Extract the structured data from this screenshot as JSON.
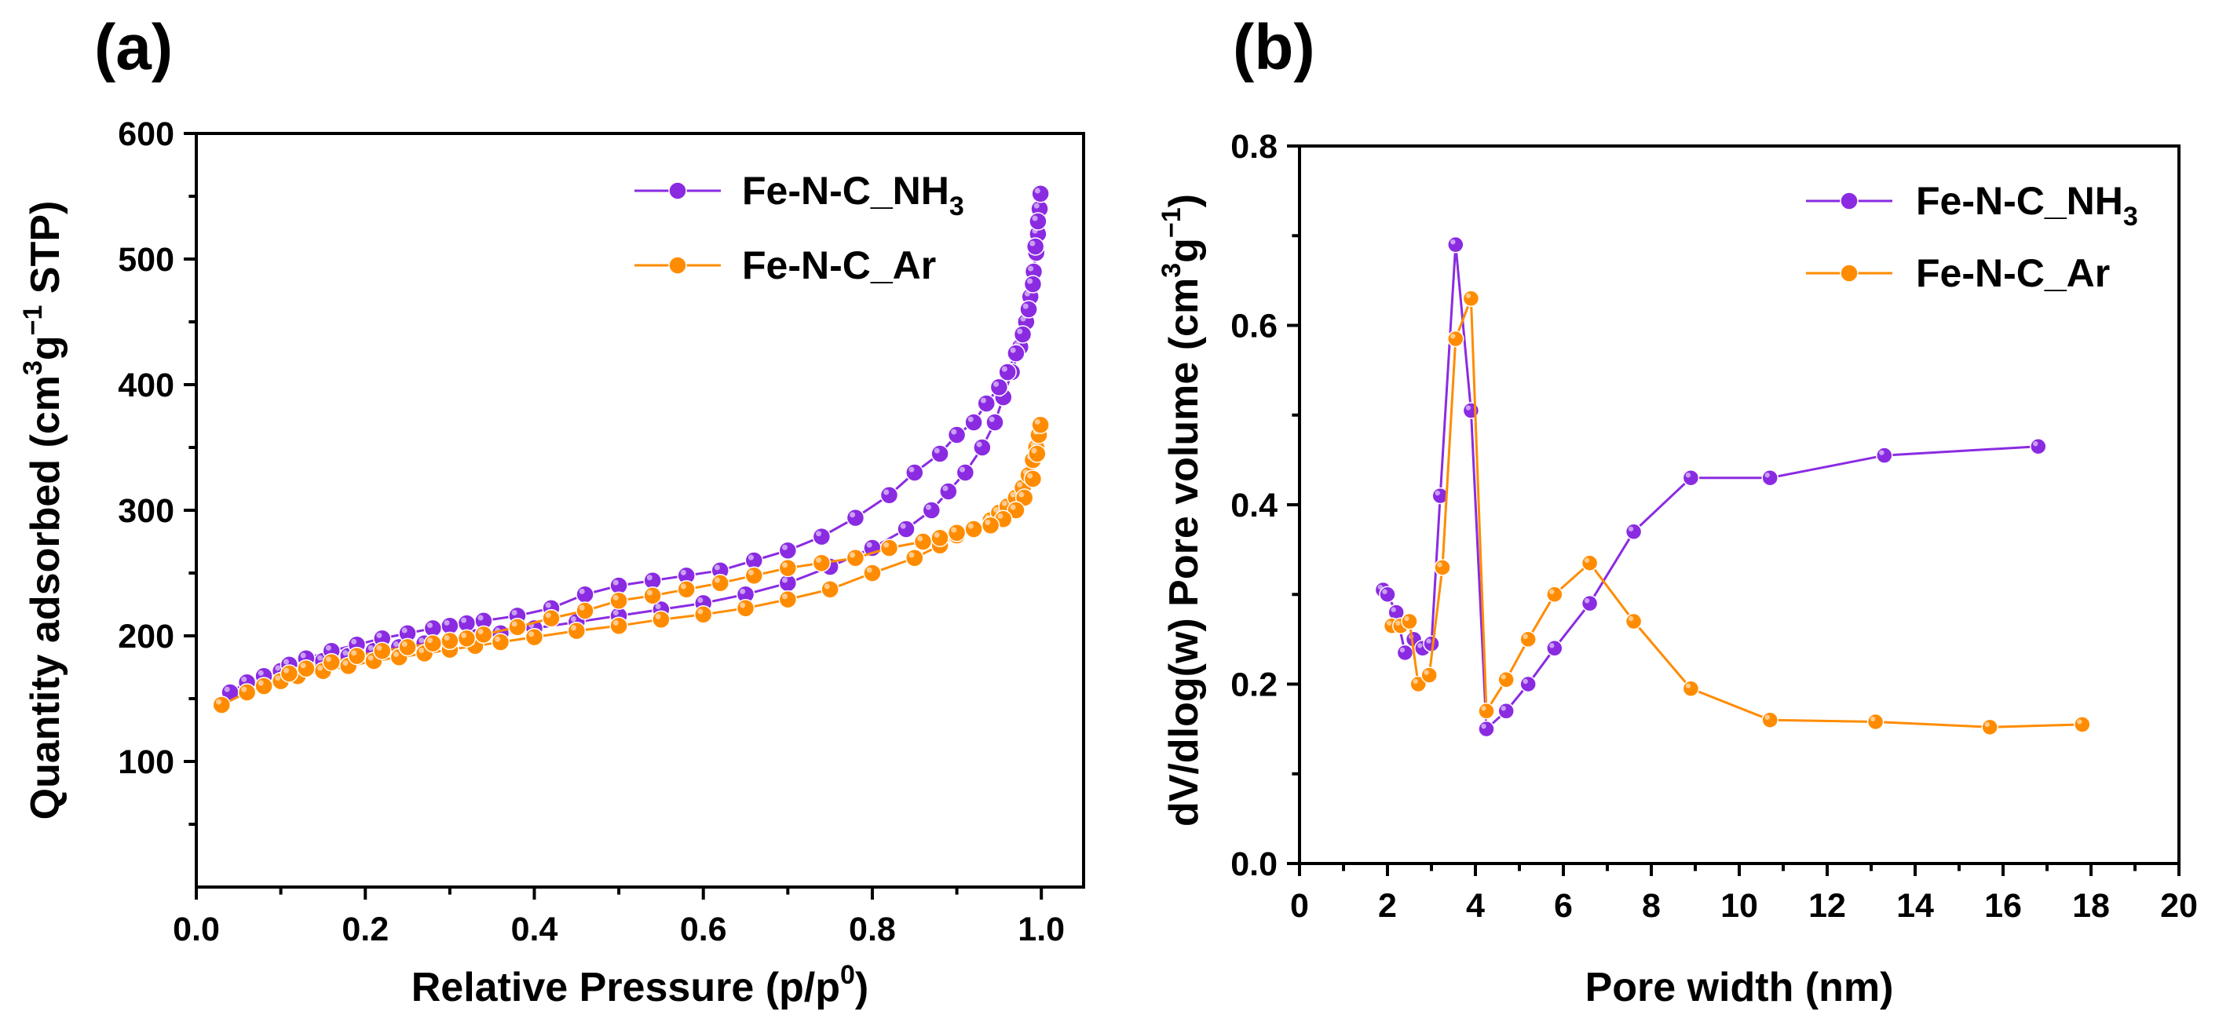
{
  "colors": {
    "nh3": "#8a2be2",
    "ar": "#ff8c00"
  },
  "chart_data": [
    {
      "id": "a",
      "panel_label": "(a)",
      "type": "line",
      "title": "",
      "xlabel": "Relative Pressure (p/p",
      "xlabel_sup": "0",
      "xlabel_end": ")",
      "ylabel_parts": [
        "Quantity adsorbed (cm",
        "3",
        "g",
        "−1",
        " STP)"
      ],
      "xlim": [
        0.0,
        1.05
      ],
      "ylim": [
        0,
        600
      ],
      "xticks": [
        0.0,
        0.2,
        0.4,
        0.6,
        0.8,
        1.0
      ],
      "xtick_labels": [
        "0.0",
        "0.2",
        "0.4",
        "0.6",
        "0.8",
        "1.0"
      ],
      "yticks": [
        100,
        200,
        300,
        400,
        500,
        600
      ],
      "ytick_labels": [
        "100",
        "200",
        "300",
        "400",
        "500",
        "600"
      ],
      "grid": false,
      "legend_position": "top-right",
      "series": [
        {
          "name": "Fe-N-C_NH",
          "name_sub": "3",
          "color_key": "nh3",
          "x": [
            0.04,
            0.06,
            0.08,
            0.1,
            0.12,
            0.15,
            0.18,
            0.21,
            0.24,
            0.27,
            0.3,
            0.33,
            0.36,
            0.4,
            0.45,
            0.5,
            0.55,
            0.6,
            0.65,
            0.7,
            0.75,
            0.8,
            0.84,
            0.87,
            0.89,
            0.91,
            0.93,
            0.945,
            0.955,
            0.965,
            0.975,
            0.982,
            0.987,
            0.991,
            0.994,
            0.996,
            0.998,
            0.999,
            0.996,
            0.993,
            0.99,
            0.985,
            0.978,
            0.97,
            0.96,
            0.95,
            0.935,
            0.92,
            0.9,
            0.88,
            0.85,
            0.82,
            0.78,
            0.74,
            0.7,
            0.66,
            0.62,
            0.58,
            0.54,
            0.5,
            0.46,
            0.42,
            0.38,
            0.34,
            0.32,
            0.3,
            0.28,
            0.25,
            0.22,
            0.19,
            0.16,
            0.13,
            0.11
          ],
          "y": [
            155,
            163,
            168,
            172,
            175,
            180,
            184,
            188,
            191,
            194,
            197,
            199,
            202,
            206,
            211,
            216,
            221,
            226,
            233,
            242,
            255,
            270,
            285,
            300,
            315,
            330,
            350,
            370,
            390,
            410,
            430,
            450,
            470,
            490,
            505,
            520,
            540,
            552,
            530,
            510,
            480,
            460,
            440,
            425,
            410,
            398,
            385,
            370,
            360,
            345,
            330,
            312,
            294,
            279,
            268,
            260,
            252,
            248,
            244,
            240,
            233,
            222,
            216,
            212,
            210,
            208,
            206,
            202,
            198,
            193,
            188,
            182,
            177
          ]
        },
        {
          "name": "Fe-N-C_Ar",
          "name_sub": "",
          "color_key": "ar",
          "x": [
            0.03,
            0.06,
            0.08,
            0.1,
            0.12,
            0.15,
            0.18,
            0.21,
            0.24,
            0.27,
            0.3,
            0.33,
            0.36,
            0.4,
            0.45,
            0.5,
            0.55,
            0.6,
            0.65,
            0.7,
            0.75,
            0.8,
            0.85,
            0.88,
            0.9,
            0.92,
            0.94,
            0.95,
            0.96,
            0.97,
            0.978,
            0.985,
            0.99,
            0.994,
            0.997,
            0.999,
            0.995,
            0.99,
            0.98,
            0.97,
            0.955,
            0.94,
            0.92,
            0.9,
            0.88,
            0.86,
            0.82,
            0.78,
            0.74,
            0.7,
            0.66,
            0.62,
            0.58,
            0.54,
            0.5,
            0.46,
            0.42,
            0.38,
            0.34,
            0.32,
            0.3,
            0.28,
            0.25,
            0.22,
            0.19,
            0.16,
            0.13,
            0.11
          ],
          "y": [
            145,
            155,
            160,
            164,
            168,
            172,
            176,
            180,
            183,
            186,
            189,
            192,
            195,
            199,
            204,
            208,
            213,
            217,
            222,
            229,
            237,
            250,
            262,
            272,
            280,
            285,
            292,
            298,
            303,
            310,
            318,
            328,
            340,
            350,
            360,
            368,
            345,
            325,
            310,
            300,
            293,
            288,
            285,
            282,
            278,
            275,
            270,
            262,
            258,
            254,
            248,
            242,
            237,
            232,
            228,
            220,
            214,
            207,
            201,
            198,
            196,
            194,
            191,
            188,
            184,
            179,
            174,
            170
          ]
        }
      ]
    },
    {
      "id": "b",
      "panel_label": "(b)",
      "type": "line",
      "title": "",
      "xlabel": "Pore width (nm)",
      "ylabel_parts": [
        "dV/dlog(w) Pore volume (cm",
        "3",
        "g",
        "−1",
        ")"
      ],
      "xlim": [
        0,
        20
      ],
      "ylim": [
        0.0,
        0.8
      ],
      "xticks": [
        0,
        2,
        4,
        6,
        8,
        10,
        12,
        14,
        16,
        18,
        20
      ],
      "xtick_labels": [
        "0",
        "2",
        "4",
        "6",
        "8",
        "10",
        "12",
        "14",
        "16",
        "18",
        "20"
      ],
      "yticks": [
        0.0,
        0.2,
        0.4,
        0.6,
        0.8
      ],
      "ytick_labels": [
        "0.0",
        "0.2",
        "0.4",
        "0.6",
        "0.8"
      ],
      "grid": false,
      "legend_position": "top-right",
      "series": [
        {
          "name": "Fe-N-C_NH",
          "name_sub": "3",
          "color_key": "nh3",
          "x": [
            1.9,
            2.0,
            2.2,
            2.4,
            2.6,
            2.8,
            3.0,
            3.2,
            3.55,
            3.9,
            4.25,
            4.7,
            5.2,
            5.8,
            6.6,
            7.6,
            8.9,
            10.7,
            13.3,
            16.8
          ],
          "y": [
            0.305,
            0.3,
            0.28,
            0.235,
            0.25,
            0.24,
            0.245,
            0.41,
            0.69,
            0.505,
            0.15,
            0.17,
            0.2,
            0.24,
            0.29,
            0.37,
            0.43,
            0.43,
            0.455,
            0.465
          ]
        },
        {
          "name": "Fe-N-C_Ar",
          "name_sub": "",
          "color_key": "ar",
          "x": [
            2.1,
            2.3,
            2.5,
            2.7,
            2.95,
            3.25,
            3.55,
            3.9,
            4.25,
            4.7,
            5.2,
            5.8,
            6.6,
            7.6,
            8.9,
            10.7,
            13.1,
            15.7,
            17.8
          ],
          "y": [
            0.265,
            0.265,
            0.27,
            0.2,
            0.21,
            0.33,
            0.585,
            0.63,
            0.17,
            0.205,
            0.25,
            0.3,
            0.335,
            0.27,
            0.195,
            0.16,
            0.158,
            0.152,
            0.155
          ]
        }
      ]
    }
  ]
}
